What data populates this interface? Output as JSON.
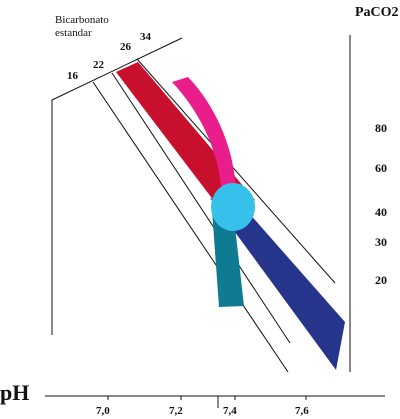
{
  "labels": {
    "bicarbonate_line1": "Bicarbonato",
    "bicarbonate_line2": "estandar",
    "paco2_title": "PaCO2",
    "ph_title": "pH"
  },
  "bicarbonate_ticks": [
    "16",
    "22",
    "26",
    "34"
  ],
  "paco2_ticks": [
    "80",
    "60",
    "40",
    "30",
    "20"
  ],
  "ph_ticks": [
    "7,0",
    "7,2",
    "7,4",
    "7,6"
  ],
  "colors": {
    "red_band": "#c8102e",
    "magenta_band": "#e91e8c",
    "blue_band": "#26348b",
    "teal_band": "#0e7b93",
    "cyan_ellipse": "#35c1ea",
    "axis": "#111111"
  }
}
